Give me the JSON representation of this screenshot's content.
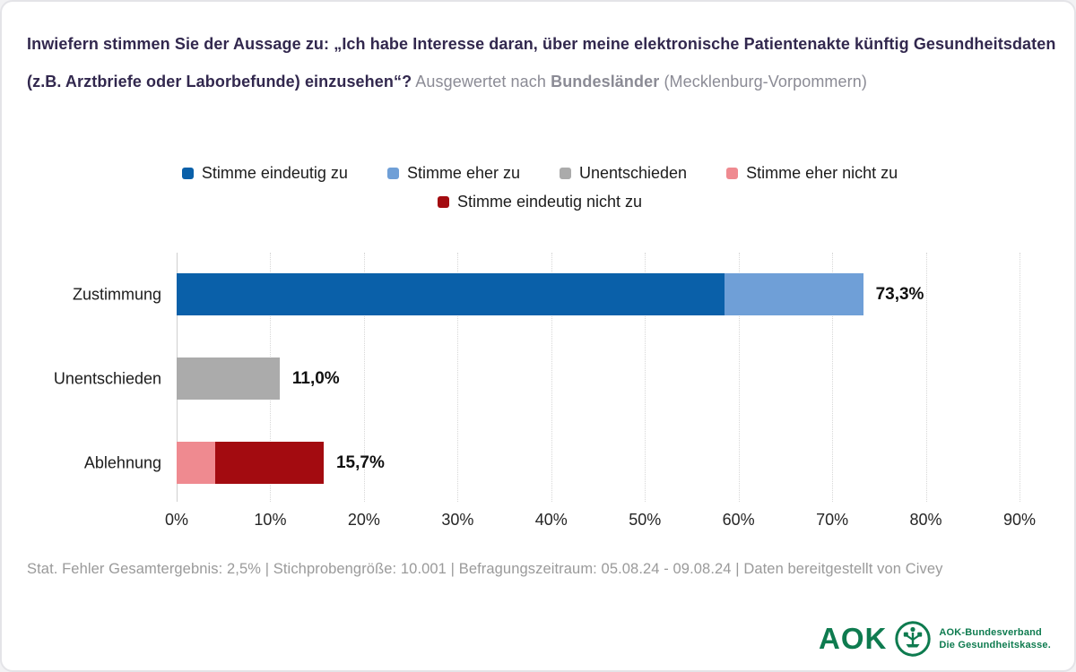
{
  "header": {
    "question": "Inwiefern stimmen Sie der Aussage zu: „Ich habe Interesse daran, über meine elektronische Patientenakte künftig Gesundheitsdaten (z.B. Arztbriefe oder Laborbefunde) einzusehen“?",
    "suffix_regular": "Ausgewertet nach",
    "suffix_bold": "Bundesländer",
    "suffix_detail": "(Mecklenburg-Vorpommern)"
  },
  "chart_data": {
    "type": "bar",
    "orientation": "horizontal",
    "stacked": true,
    "grid": "vertical-dotted",
    "legend_position": "top-center",
    "categories": [
      "Zustimmung",
      "Unentschieden",
      "Ablehnung"
    ],
    "series": [
      {
        "name": "Stimme eindeutig zu",
        "color": "#0a60a9",
        "values": [
          58.5,
          0,
          0
        ]
      },
      {
        "name": "Stimme eher zu",
        "color": "#6f9fd7",
        "values": [
          14.8,
          0,
          0
        ]
      },
      {
        "name": "Unentschieden",
        "color": "#ababab",
        "values": [
          0,
          11.0,
          0
        ]
      },
      {
        "name": "Stimme eher nicht zu",
        "color": "#ef8a90",
        "values": [
          0,
          0,
          4.1
        ]
      },
      {
        "name": "Stimme eindeutig nicht zu",
        "color": "#a30b10",
        "values": [
          0,
          0,
          11.6
        ]
      }
    ],
    "totals": [
      73.3,
      11.0,
      15.7
    ],
    "totals_labels": [
      "73,3%",
      "11,0%",
      "15,7%"
    ],
    "x_ticks": [
      "0%",
      "10%",
      "20%",
      "30%",
      "40%",
      "50%",
      "60%",
      "70%",
      "80%",
      "90%"
    ],
    "x_tick_values": [
      0,
      10,
      20,
      30,
      40,
      50,
      60,
      70,
      80,
      90
    ],
    "xlim": [
      0,
      90
    ]
  },
  "footer": {
    "text": "Stat. Fehler Gesamtergebnis: 2,5% | Stichprobengröße: 10.001 | Befragungszeitraum: 05.08.24 - 09.08.24 | Daten bereitgestellt von Civey"
  },
  "logo": {
    "wordmark": "AOK",
    "line1": "AOK-Bundesverband",
    "line2": "Die Gesundheitskasse.",
    "green": "#0e7b4f"
  }
}
